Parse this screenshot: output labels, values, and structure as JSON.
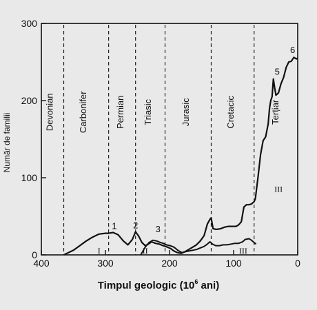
{
  "chart_data": {
    "type": "line",
    "xlabel": "Timpul geologic (10",
    "xlabel_sup": "6",
    "xlabel_end": " ani)",
    "ylabel": "Număr de familii",
    "xlim": [
      400,
      0
    ],
    "ylim": [
      0,
      300
    ],
    "x_ticks": [
      400,
      300,
      200,
      100,
      0
    ],
    "y_ticks": [
      0,
      100,
      200,
      300
    ],
    "grid": false,
    "period_boundaries": [
      365,
      295,
      253,
      207,
      135,
      68
    ],
    "periods": [
      {
        "label": "Devonian",
        "x": 382
      },
      {
        "label": "Carbonifer",
        "x": 330
      },
      {
        "label": "Permian",
        "x": 272
      },
      {
        "label": "Triasic",
        "x": 229
      },
      {
        "label": "Jurasic",
        "x": 170
      },
      {
        "label": "Cretacic",
        "x": 100
      },
      {
        "label": "Terțiar",
        "x": 30
      }
    ],
    "series": [
      {
        "name": "",
        "x": [
          365,
          350,
          340,
          330,
          320,
          310,
          300,
          295,
          288,
          280,
          272,
          265,
          258,
          253,
          248,
          243,
          238,
          233,
          228,
          222,
          216,
          210,
          203,
          198,
          193,
          188,
          182,
          176,
          170,
          164,
          158,
          152,
          146,
          141,
          137,
          135,
          132,
          127,
          120,
          114,
          108,
          102,
          96,
          92,
          88,
          84,
          80,
          76,
          72,
          68,
          66,
          62,
          58,
          54,
          50,
          46,
          44,
          42,
          40,
          38,
          36,
          34,
          30,
          26,
          22,
          18,
          14,
          10,
          6,
          2,
          0
        ],
        "y": [
          0,
          6,
          12,
          18,
          23,
          27,
          28,
          28,
          29,
          26,
          18,
          13,
          20,
          30,
          24,
          16,
          12,
          14,
          17,
          15,
          14,
          12,
          10,
          8,
          5,
          3,
          2,
          4,
          7,
          10,
          13,
          18,
          25,
          40,
          46,
          48,
          34,
          33,
          34,
          36,
          37,
          37,
          37,
          39,
          43,
          62,
          65,
          65,
          66,
          69,
          73,
          100,
          130,
          148,
          153,
          170,
          190,
          200,
          205,
          228,
          217,
          207,
          210,
          222,
          230,
          243,
          250,
          251,
          256,
          254,
          255
        ]
      },
      {
        "name": "",
        "x": [
          245,
          238,
          232,
          226,
          220,
          214,
          210,
          205,
          199,
          193,
          187,
          181,
          176,
          170,
          164,
          158,
          152,
          146,
          141,
          137,
          133,
          128,
          122,
          116,
          110,
          104,
          98,
          92,
          86,
          82,
          76,
          72,
          68,
          65
        ],
        "y": [
          0,
          10,
          16,
          19,
          18,
          16,
          15,
          13,
          12,
          10,
          6,
          3,
          4,
          5,
          6,
          7,
          9,
          11,
          14,
          17,
          14,
          12,
          12,
          13,
          13,
          14,
          15,
          15,
          17,
          20,
          21,
          19,
          16,
          14
        ]
      }
    ],
    "annotations": [
      {
        "text": "1",
        "x": 286,
        "y": 30
      },
      {
        "text": "2",
        "x": 253,
        "y": 31
      },
      {
        "text": "3",
        "x": 218,
        "y": 26
      },
      {
        "text": "5",
        "x": 32,
        "y": 230
      },
      {
        "text": "6",
        "x": 8,
        "y": 258
      }
    ],
    "region_labels": [
      {
        "text": "I",
        "x": 310,
        "y": 0
      },
      {
        "text": "II",
        "x": 238,
        "y": 0
      },
      {
        "text": "III",
        "x": 85,
        "y": 0
      },
      {
        "text": "III",
        "x": 30,
        "y": 80
      }
    ]
  }
}
